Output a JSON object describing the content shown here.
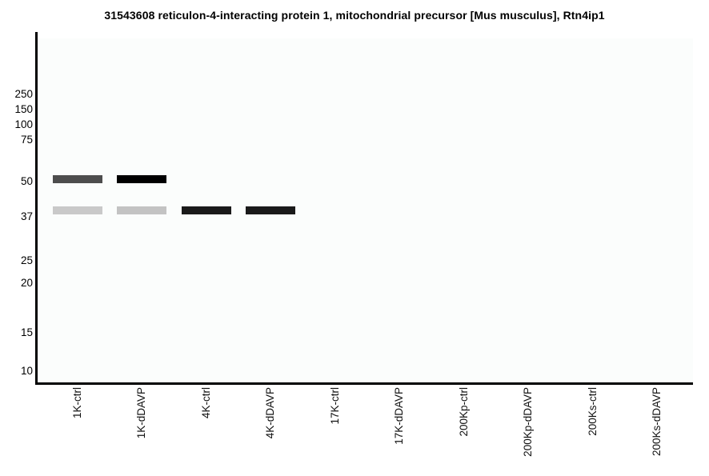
{
  "chart_data": {
    "type": "western_blot",
    "title": "31543608 reticulon-4-interacting protein 1, mitochondrial precursor [Mus musculus], Rtn4ip1",
    "axis_scale": "log",
    "legend": "none",
    "grid": "off",
    "mw_markers_kda": [
      250,
      150,
      100,
      75,
      50,
      37,
      25,
      20,
      15,
      10
    ],
    "lanes": [
      "1K-ctrl",
      "1K-dDAVP",
      "4K-ctrl",
      "4K-dDAVP",
      "17K-ctrl",
      "17K-dDAVP",
      "200Kp-ctrl",
      "200Kp-dDAVP",
      "200Ks-ctrl",
      "200Ks-dDAVP"
    ],
    "bands": [
      {
        "lane": "1K-ctrl",
        "mw_kda": 51,
        "intensity": 0.7,
        "color": "#4d4d4d"
      },
      {
        "lane": "1K-dDAVP",
        "mw_kda": 51,
        "intensity": 1.0,
        "color": "#000000"
      },
      {
        "lane": "1K-ctrl",
        "mw_kda": 39,
        "intensity": 0.21,
        "color": "#c9c9c9"
      },
      {
        "lane": "1K-dDAVP",
        "mw_kda": 39,
        "intensity": 0.24,
        "color": "#c3c3c3"
      },
      {
        "lane": "4K-ctrl",
        "mw_kda": 39,
        "intensity": 0.9,
        "color": "#1a1a1a"
      },
      {
        "lane": "4K-dDAVP",
        "mw_kda": 39,
        "intensity": 0.9,
        "color": "#1a1a1a"
      }
    ]
  }
}
